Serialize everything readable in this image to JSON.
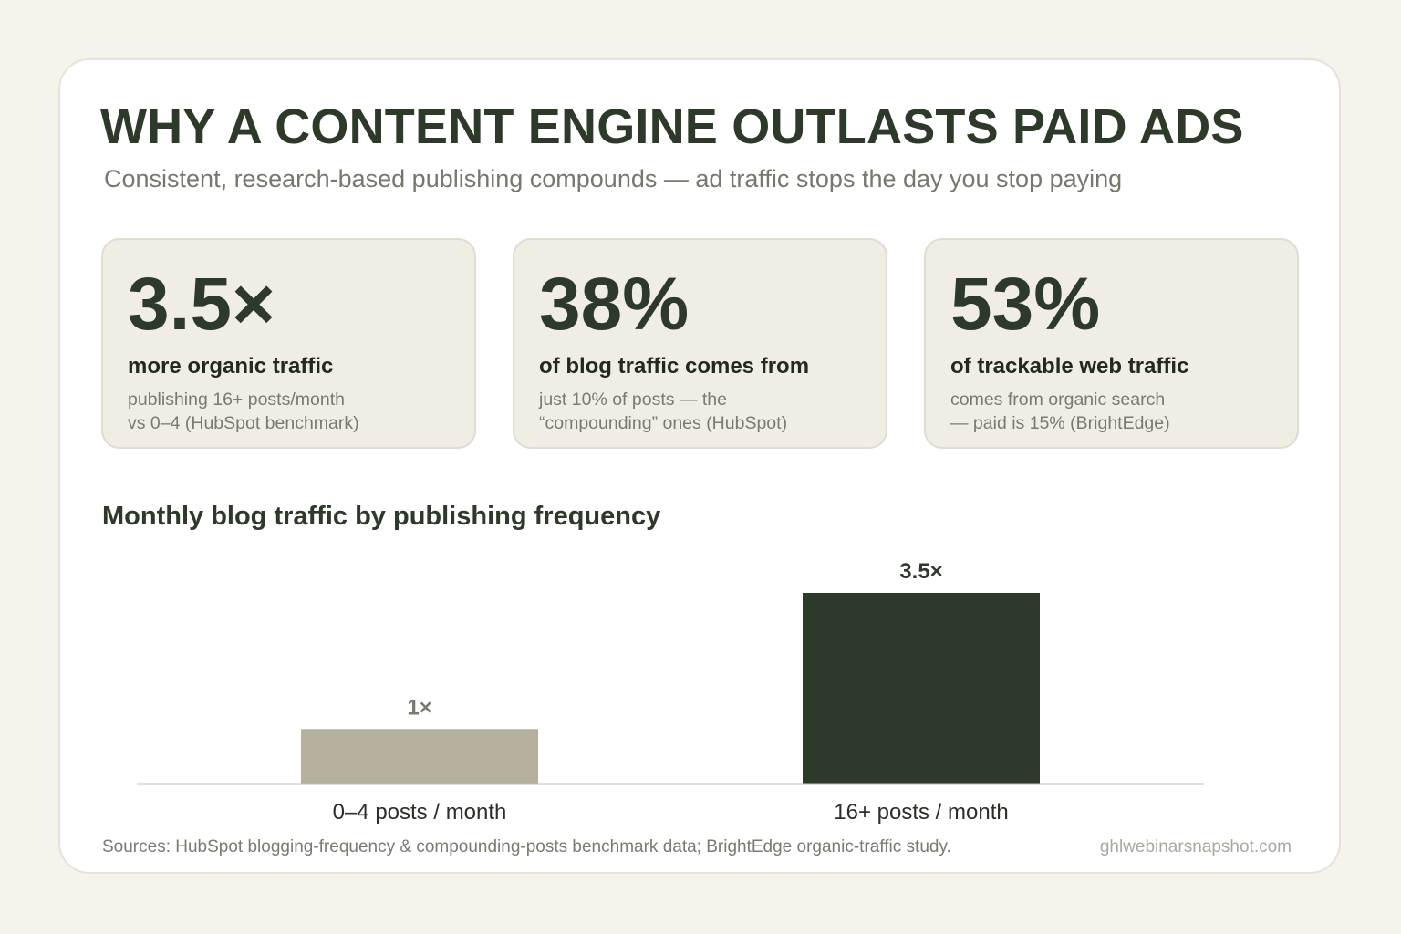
{
  "header": {
    "title": "WHY A CONTENT ENGINE OUTLASTS PAID ADS",
    "subtitle": "Consistent, research-based publishing compounds — ad traffic stops the day you stop paying"
  },
  "stats": [
    {
      "value": "3.5×",
      "label": "more organic traffic",
      "desc_lines": [
        "publishing 16+ posts/month",
        "vs 0–4 (HubSpot benchmark)"
      ]
    },
    {
      "value": "38%",
      "label": "of blog traffic comes from",
      "desc_lines": [
        "just 10% of posts — the",
        "“compounding” ones (HubSpot)"
      ]
    },
    {
      "value": "53%",
      "label": "of trackable web traffic",
      "desc_lines": [
        "comes from organic search",
        "— paid is 15% (BrightEdge)"
      ]
    }
  ],
  "chart_data": {
    "type": "bar",
    "title": "Monthly blog traffic by publishing frequency",
    "categories": [
      "0–4 posts / month",
      "16+ posts / month"
    ],
    "values": [
      1,
      3.5
    ],
    "data_labels": [
      "1×",
      "3.5×"
    ],
    "colors": [
      "#b5b09d",
      "#2d3a2a"
    ],
    "label_colors": [
      "#7a7a70",
      "#2d3a2a"
    ],
    "ylim": [
      0,
      3.5
    ],
    "grid": false,
    "xlabel": "",
    "ylabel": ""
  },
  "footer": {
    "sources": "Sources: HubSpot blogging-frequency & compounding-posts benchmark data; BrightEdge organic-traffic study.",
    "site": "ghlwebinarsnapshot.com"
  },
  "colors": {
    "background": "#f6f3ec",
    "card": "#ffffff",
    "stat_card": "#f0ede3",
    "accent_dark": "#2d3a2a",
    "muted_text": "#7a7a70"
  }
}
